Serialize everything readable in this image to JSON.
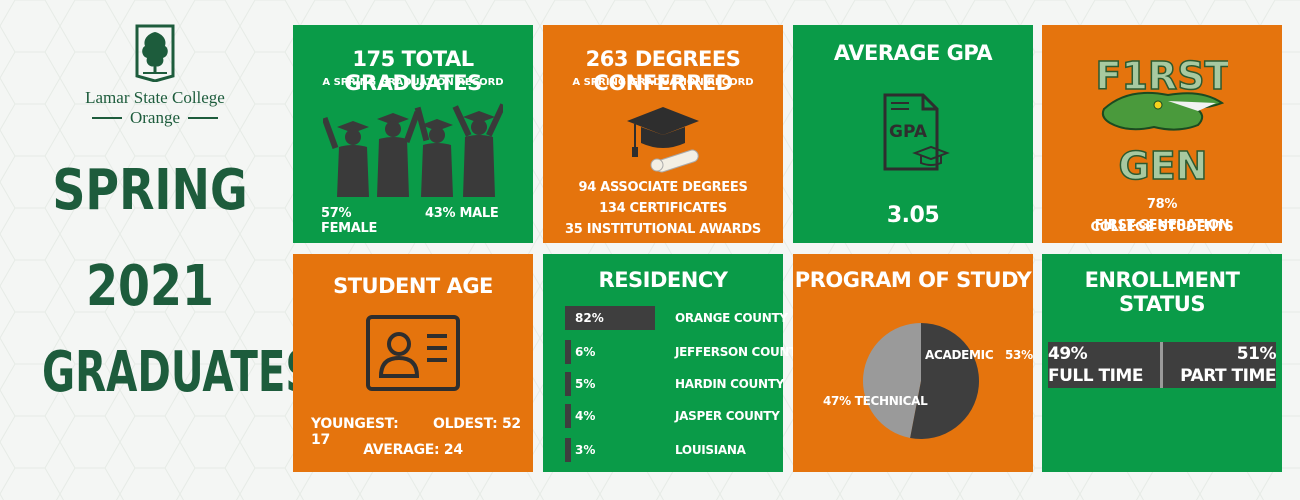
{
  "logo": {
    "name": "Lamar State College",
    "sub": "Orange"
  },
  "hero": {
    "line1": "SPRING",
    "line2": "2021",
    "line3": "GRADUATES"
  },
  "graduates": {
    "title": "175 TOTAL GRADUATES",
    "subtitle": "A SPRING GRADUATION RECORD",
    "female": "57% FEMALE",
    "male": "43% MALE"
  },
  "degrees": {
    "title": "263 DEGREES CONFERRED",
    "subtitle": "A SPRING GRADUATION RECORD",
    "associate": "94 ASSOCIATE DEGREES",
    "certificates": "134 CERTIFICATES",
    "awards": "35 INSTITUTIONAL AWARDS"
  },
  "gpa": {
    "title": "AVERAGE GPA",
    "icon_text": "GPA",
    "value": "3.05"
  },
  "firstgen": {
    "logo_line1": "F1RST",
    "logo_line2": "GEN",
    "percent": "78%",
    "line1": "FIRST-GENERATION",
    "line2": "COLLEGE STUDENTS"
  },
  "age": {
    "title": "STUDENT AGE",
    "youngest": "YOUNGEST: 17",
    "oldest": "OLDEST: 52",
    "average": "AVERAGE: 24"
  },
  "residency": {
    "title": "RESIDENCY",
    "rows": [
      {
        "pct": "82%",
        "label": "ORANGE COUNTY",
        "value": 82
      },
      {
        "pct": "6%",
        "label": "JEFFERSON COUNTY",
        "value": 6
      },
      {
        "pct": "5%",
        "label": "HARDIN COUNTY",
        "value": 5
      },
      {
        "pct": "4%",
        "label": "JASPER COUNTY",
        "value": 4
      },
      {
        "pct": "3%",
        "label": "LOUISIANA",
        "value": 3
      }
    ]
  },
  "program": {
    "title": "PROGRAM OF STUDY",
    "academic_label": "ACADEMIC",
    "academic_pct": "53%",
    "technical_label": "47% TECHNICAL",
    "academic_value": 53,
    "technical_value": 47
  },
  "enrollment": {
    "title": "ENROLLMENT STATUS",
    "full_pct": "49%",
    "full_label": "FULL TIME",
    "part_pct": "51%",
    "part_label": "PART TIME",
    "full_value": 49,
    "part_value": 51
  },
  "colors": {
    "green": "#0a9b48",
    "orange": "#e5740d",
    "dark": "#3e3e3e",
    "brand": "#1d5c3c"
  }
}
